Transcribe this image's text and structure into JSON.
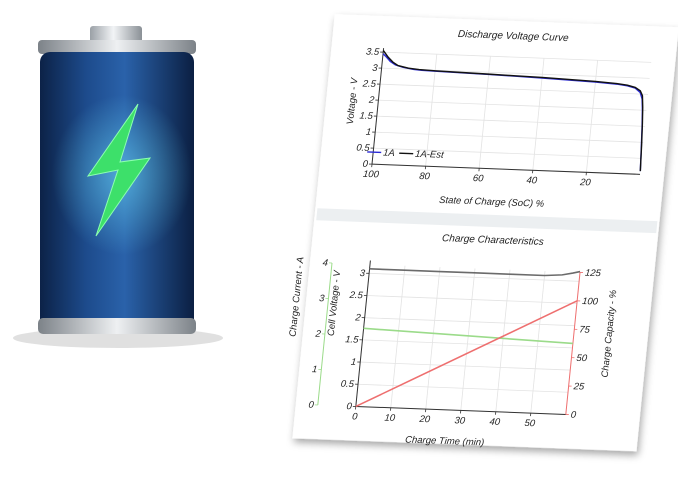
{
  "colors": {
    "battery_body": "#1f4d8f",
    "bolt": "#3de06a",
    "series_1a": "#2b2bd6",
    "series_1a_est": "#111111",
    "charge_voltage": "#6b6b6b",
    "charge_current": "#9bdb8a",
    "charge_capacity": "#ee6f6f"
  },
  "icons": {
    "battery": "battery-charging-icon"
  },
  "chart_data": [
    {
      "type": "line",
      "title": "Discharge Voltage Curve",
      "xlabel": "State of Charge (SoC) %",
      "ylabel": "Voltage - V",
      "xlim": [
        100,
        0
      ],
      "ylim": [
        0,
        3.5
      ],
      "xticks": [
        "100",
        "80",
        "60",
        "40",
        "20"
      ],
      "yticks": [
        "0",
        "0.5",
        "1",
        "1.5",
        "2",
        "2.5",
        "3",
        "3.5"
      ],
      "legend": "bottom-left",
      "series": [
        {
          "name": "1A",
          "x": [
            100,
            99,
            98,
            97,
            95,
            92,
            88,
            85,
            80,
            70,
            60,
            50,
            40,
            30,
            20,
            12,
            8,
            5,
            3,
            2,
            1.5,
            1,
            0.5,
            0
          ],
          "y": [
            3.45,
            3.38,
            3.3,
            3.22,
            3.12,
            3.05,
            3.0,
            2.98,
            2.97,
            2.95,
            2.93,
            2.91,
            2.88,
            2.85,
            2.82,
            2.78,
            2.74,
            2.68,
            2.55,
            2.35,
            2.0,
            1.5,
            0.8,
            0.1
          ]
        },
        {
          "name": "1A-Est",
          "x": [
            100,
            99,
            98,
            96,
            94,
            90,
            86,
            80,
            70,
            60,
            50,
            40,
            30,
            20,
            12,
            8,
            5,
            3,
            2,
            1.5,
            1,
            0.5,
            0
          ],
          "y": [
            3.55,
            3.45,
            3.35,
            3.2,
            3.1,
            3.03,
            3.0,
            2.98,
            2.96,
            2.94,
            2.92,
            2.9,
            2.87,
            2.84,
            2.8,
            2.76,
            2.7,
            2.6,
            2.45,
            2.1,
            1.6,
            0.9,
            0.1
          ]
        }
      ]
    },
    {
      "type": "line",
      "title": "Charge Characteristics",
      "xlabel": "Charge Time (min)",
      "ylabel_left_outer": "Charge Current - A",
      "ylabel_left_inner": "Cell Voltage - V",
      "ylabel_right": "Charge Capacity - %",
      "xlim": [
        0,
        60
      ],
      "xticks": [
        "0",
        "10",
        "20",
        "30",
        "40",
        "50"
      ],
      "current_axis": {
        "ylim": [
          0,
          4
        ],
        "ticks": [
          "0",
          "1",
          "2",
          "3",
          "4"
        ]
      },
      "voltage_axis": {
        "ylim": [
          0,
          3.2
        ],
        "ticks": [
          "0",
          "0.5",
          "1",
          "1.5",
          "2",
          "2.5",
          "3"
        ]
      },
      "capacity_axis": {
        "ylim": [
          0,
          125
        ],
        "ticks": [
          "0",
          "25",
          "50",
          "75",
          "100",
          "125"
        ]
      },
      "series": [
        {
          "axis": "voltage",
          "x": [
            0,
            10,
            20,
            30,
            40,
            50,
            55,
            58,
            60
          ],
          "y": [
            3.1,
            3.1,
            3.1,
            3.1,
            3.1,
            3.1,
            3.13,
            3.18,
            3.22
          ]
        },
        {
          "axis": "current",
          "x": [
            0,
            60
          ],
          "y": [
            2.2,
            2.0
          ]
        },
        {
          "axis": "capacity",
          "x": [
            0,
            60
          ],
          "y": [
            0,
            100
          ]
        }
      ]
    }
  ]
}
